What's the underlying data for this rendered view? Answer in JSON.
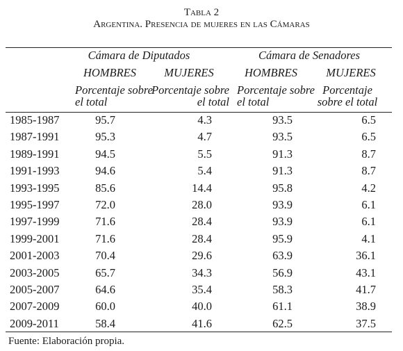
{
  "title": "Tabla 2",
  "subtitle": "Argentina. Presencia de mujeres en las Cámaras",
  "table": {
    "groups": [
      "Cámara de Diputados",
      "Cámara de Senadores"
    ],
    "columns": [
      "HOMBRES",
      "MUJERES",
      "HOMBRES",
      "MUJERES"
    ],
    "units": [
      [
        "Porcentaje sobre",
        "el total"
      ],
      [
        "Porcentaje sobre",
        "el total"
      ],
      [
        "Porcentaje sobre",
        "el total"
      ],
      [
        "Porcentaje",
        "sobre el total"
      ]
    ],
    "rows": [
      [
        "1985-1987",
        "95.7",
        "4.3",
        "93.5",
        "6.5"
      ],
      [
        "1987-1991",
        "95.3",
        "4.7",
        "93.5",
        "6.5"
      ],
      [
        "1989-1991",
        "94.5",
        "5.5",
        "91.3",
        "8.7"
      ],
      [
        "1991-1993",
        "94.6",
        "5.4",
        "91.3",
        "8.7"
      ],
      [
        "1993-1995",
        "85.6",
        "14.4",
        "95.8",
        "4.2"
      ],
      [
        "1995-1997",
        "72.0",
        "28.0",
        "93.9",
        "6.1"
      ],
      [
        "1997-1999",
        "71.6",
        "28.4",
        "93.9",
        "6.1"
      ],
      [
        "1999-2001",
        "71.6",
        "28.4",
        "95.9",
        "4.1"
      ],
      [
        "2001-2003",
        "70.4",
        "29.6",
        "63.9",
        "36.1"
      ],
      [
        "2003-2005",
        "65.7",
        "34.3",
        "56.9",
        "43.1"
      ],
      [
        "2005-2007",
        "64.6",
        "35.4",
        "58.3",
        "41.7"
      ],
      [
        "2007-2009",
        "60.0",
        "40.0",
        "61.1",
        "38.9"
      ],
      [
        "2009-2011",
        "58.4",
        "41.6",
        "62.5",
        "37.5"
      ]
    ]
  },
  "footer": "Fuente: Elaboración propia."
}
